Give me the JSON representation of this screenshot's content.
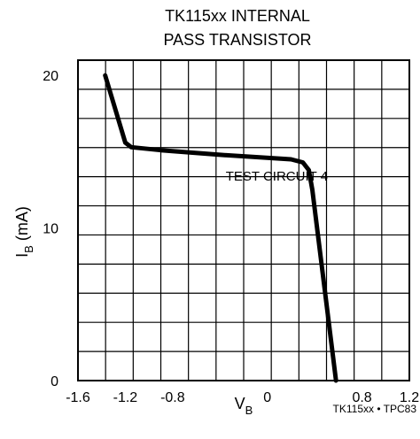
{
  "chart_data": {
    "type": "line",
    "title_lines": [
      "TK115xx INTERNAL",
      "PASS TRANSISTOR"
    ],
    "xlabel": {
      "main": "V",
      "sub": "B"
    },
    "ylabel": {
      "main": "I",
      "sub": "B",
      "suffix": " (mA)"
    },
    "xlim": [
      -1.6,
      1.2
    ],
    "ylim": [
      0,
      21
    ],
    "x_ticks": [
      {
        "value": -1.6,
        "label": "-1.6"
      },
      {
        "value": -1.2,
        "label": "-1.2"
      },
      {
        "value": -0.8,
        "label": "-0.8"
      },
      {
        "value": 0,
        "label": "0"
      },
      {
        "value": 0.8,
        "label": "0.8"
      },
      {
        "value": 1.2,
        "label": "1.2"
      }
    ],
    "y_ticks": [
      {
        "value": 0,
        "label": "0"
      },
      {
        "value": 10,
        "label": "10"
      },
      {
        "value": 20,
        "label": "20"
      }
    ],
    "grid": true,
    "grid_columns": 12,
    "grid_rows": 11,
    "series": [
      {
        "points": [
          {
            "x": -1.37,
            "y": 20.0
          },
          {
            "x": -1.2,
            "y": 15.6
          },
          {
            "x": -1.15,
            "y": 15.3
          },
          {
            "x": -0.9,
            "y": 15.1
          },
          {
            "x": -0.4,
            "y": 14.8
          },
          {
            "x": 0.2,
            "y": 14.5
          },
          {
            "x": 0.3,
            "y": 14.3
          },
          {
            "x": 0.35,
            "y": 13.8
          },
          {
            "x": 0.38,
            "y": 12.5
          },
          {
            "x": 0.58,
            "y": 0.0
          }
        ],
        "color": "#000000"
      }
    ],
    "annotations": [
      {
        "text": "TEST CIRCUIT 4",
        "x": 0.08,
        "y": 13.1
      }
    ],
    "footer_tag": "TK115xx • TPC83"
  }
}
